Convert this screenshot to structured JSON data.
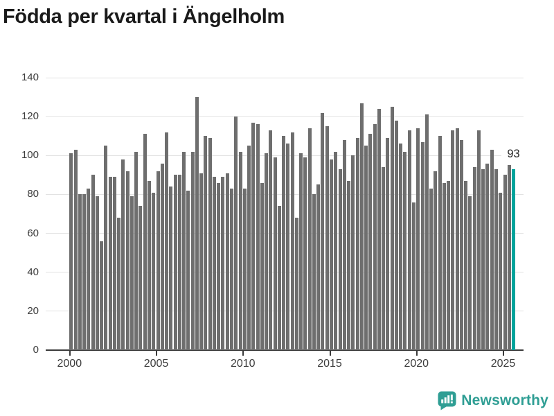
{
  "title": "Födda per kvartal i Ängelholm",
  "annotation": {
    "last_value_label": "93"
  },
  "branding": {
    "name": "Newsworthy",
    "icon": "newsworthy-bar-chart-bubble-icon",
    "color": "#2f9e94"
  },
  "colors": {
    "bar": "#6e6e6e",
    "highlight": "#00a39b",
    "grid": "#e2e2e2",
    "axis": "#3a3a3a",
    "tick_text": "#3c3c3c",
    "title_text": "#1a1a1a",
    "label_text": "#262626"
  },
  "chart_data": {
    "type": "bar",
    "title": "Födda per kvartal i Ängelholm",
    "xlabel": "",
    "ylabel": "",
    "frequency": "quarterly",
    "x_start": "2000 Q1",
    "x_end": "2025 Q3",
    "x_tick_labels": [
      "2000",
      "2005",
      "2010",
      "2015",
      "2020",
      "2025"
    ],
    "y_ticks": [
      0,
      20,
      40,
      60,
      80,
      100,
      120,
      140
    ],
    "ylim": [
      0,
      140
    ],
    "grid": true,
    "legend": "none",
    "series": [
      {
        "name": "Födda per kvartal",
        "values": [
          101,
          103,
          80,
          80,
          83,
          90,
          79,
          56,
          105,
          89,
          89,
          68,
          98,
          92,
          79,
          102,
          74,
          111,
          87,
          81,
          92,
          96,
          112,
          84,
          90,
          90,
          102,
          82,
          102,
          130,
          91,
          110,
          109,
          89,
          86,
          89,
          91,
          83,
          120,
          102,
          83,
          105,
          117,
          116,
          86,
          101,
          113,
          99,
          74,
          110,
          106,
          112,
          68,
          101,
          99,
          114,
          80,
          85,
          122,
          115,
          98,
          102,
          93,
          108,
          87,
          100,
          109,
          127,
          105,
          111,
          116,
          124,
          94,
          109,
          125,
          118,
          106,
          102,
          113,
          76,
          114,
          107,
          121,
          83,
          92,
          110,
          86,
          87,
          113,
          114,
          108,
          87,
          79,
          94,
          113,
          93,
          96,
          103,
          93,
          81,
          90,
          95,
          93
        ]
      }
    ],
    "highlight": {
      "index": 102,
      "value": 93,
      "label": "93",
      "color": "#00a39b"
    }
  }
}
